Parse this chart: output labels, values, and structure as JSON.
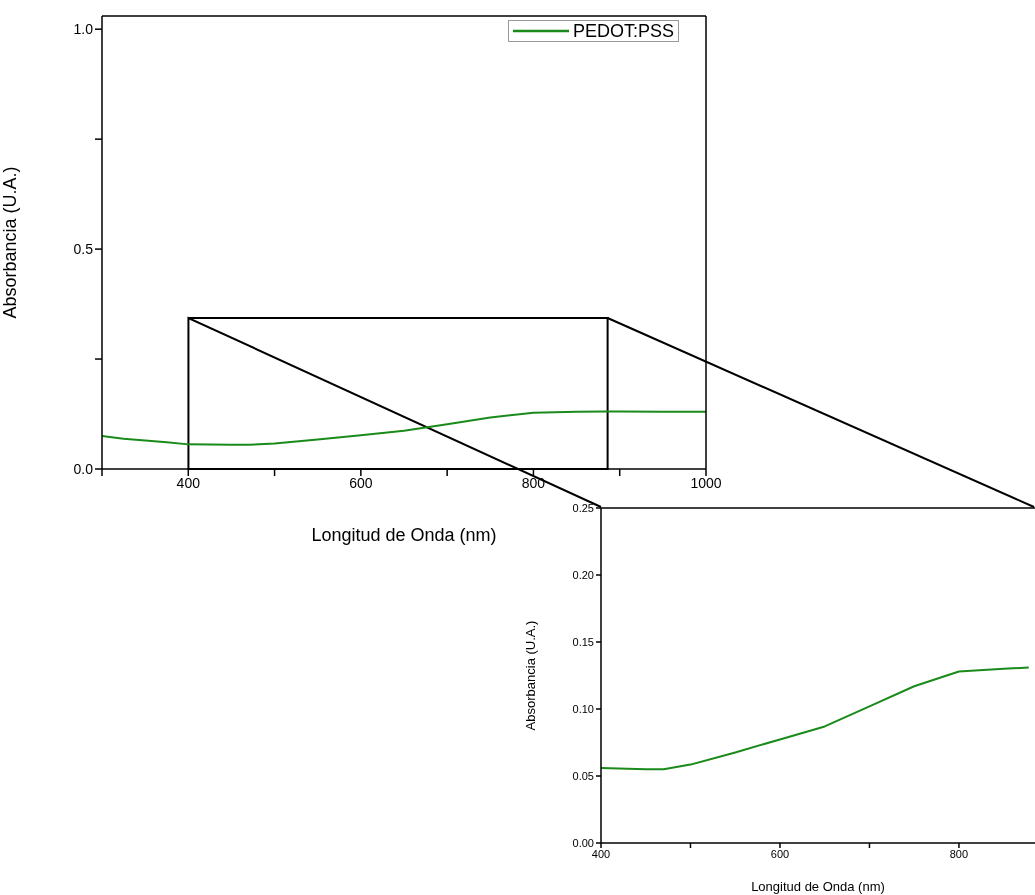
{
  "chart_data": [
    {
      "type": "line",
      "xlabel": "Longitud de Onda (nm)",
      "ylabel": "Absorbancia (U.A.)",
      "legend": "top right",
      "xlim": [
        300,
        1000
      ],
      "ylim": [
        0,
        1.03
      ],
      "xticks": [
        {
          "value": 300,
          "label": null
        },
        400,
        {
          "value": 500,
          "label": null
        },
        600,
        {
          "value": 700,
          "label": null
        },
        800,
        {
          "value": 900,
          "label": null
        },
        1000
      ],
      "yticks": [
        {
          "value": 0,
          "label": "0.0"
        },
        {
          "value": 0.25,
          "label": null
        },
        {
          "value": 0.5,
          "label": "0.5"
        },
        {
          "value": 0.75,
          "label": null
        },
        {
          "value": 1,
          "label": "1.0"
        }
      ],
      "x": [
        300,
        325,
        350,
        375,
        400,
        450,
        470,
        500,
        550,
        600,
        650,
        700,
        750,
        800,
        850,
        885,
        900,
        950,
        1000
      ],
      "series": [
        {
          "name": "PEDOT:PSS",
          "color": "#1a8a1a",
          "values": [
            0.075,
            0.069,
            0.065,
            0.061,
            0.056,
            0.055,
            0.055,
            0.058,
            0.067,
            0.077,
            0.087,
            0.102,
            0.117,
            0.128,
            0.13,
            0.131,
            0.131,
            0.13,
            0.13
          ]
        }
      ]
    },
    {
      "type": "line",
      "xlabel": "Longitud de Onda (nm)",
      "ylabel": "Absorbancia (U.A.)",
      "xlim": [
        400,
        885
      ],
      "ylim": [
        0,
        0.25
      ],
      "xticks": [
        400,
        {
          "value": 500,
          "label": null
        },
        600,
        {
          "value": 700,
          "label": null
        },
        800
      ],
      "yticks": [
        {
          "value": 0,
          "label": "0.00"
        },
        {
          "value": 0.05,
          "label": "0.05"
        },
        {
          "value": 0.1,
          "label": "0.10"
        },
        {
          "value": 0.15,
          "label": "0.15"
        },
        {
          "value": 0.2,
          "label": "0.20"
        },
        {
          "value": 0.25,
          "label": "0.25"
        }
      ],
      "x": [
        400,
        450,
        470,
        500,
        550,
        600,
        650,
        700,
        750,
        800,
        850,
        878
      ],
      "series": [
        {
          "color": "#1a8a1a",
          "values": [
            0.056,
            0.055,
            0.055,
            0.0585,
            0.0676,
            0.0773,
            0.087,
            0.102,
            0.117,
            0.128,
            0.13,
            0.131
          ]
        }
      ]
    }
  ]
}
